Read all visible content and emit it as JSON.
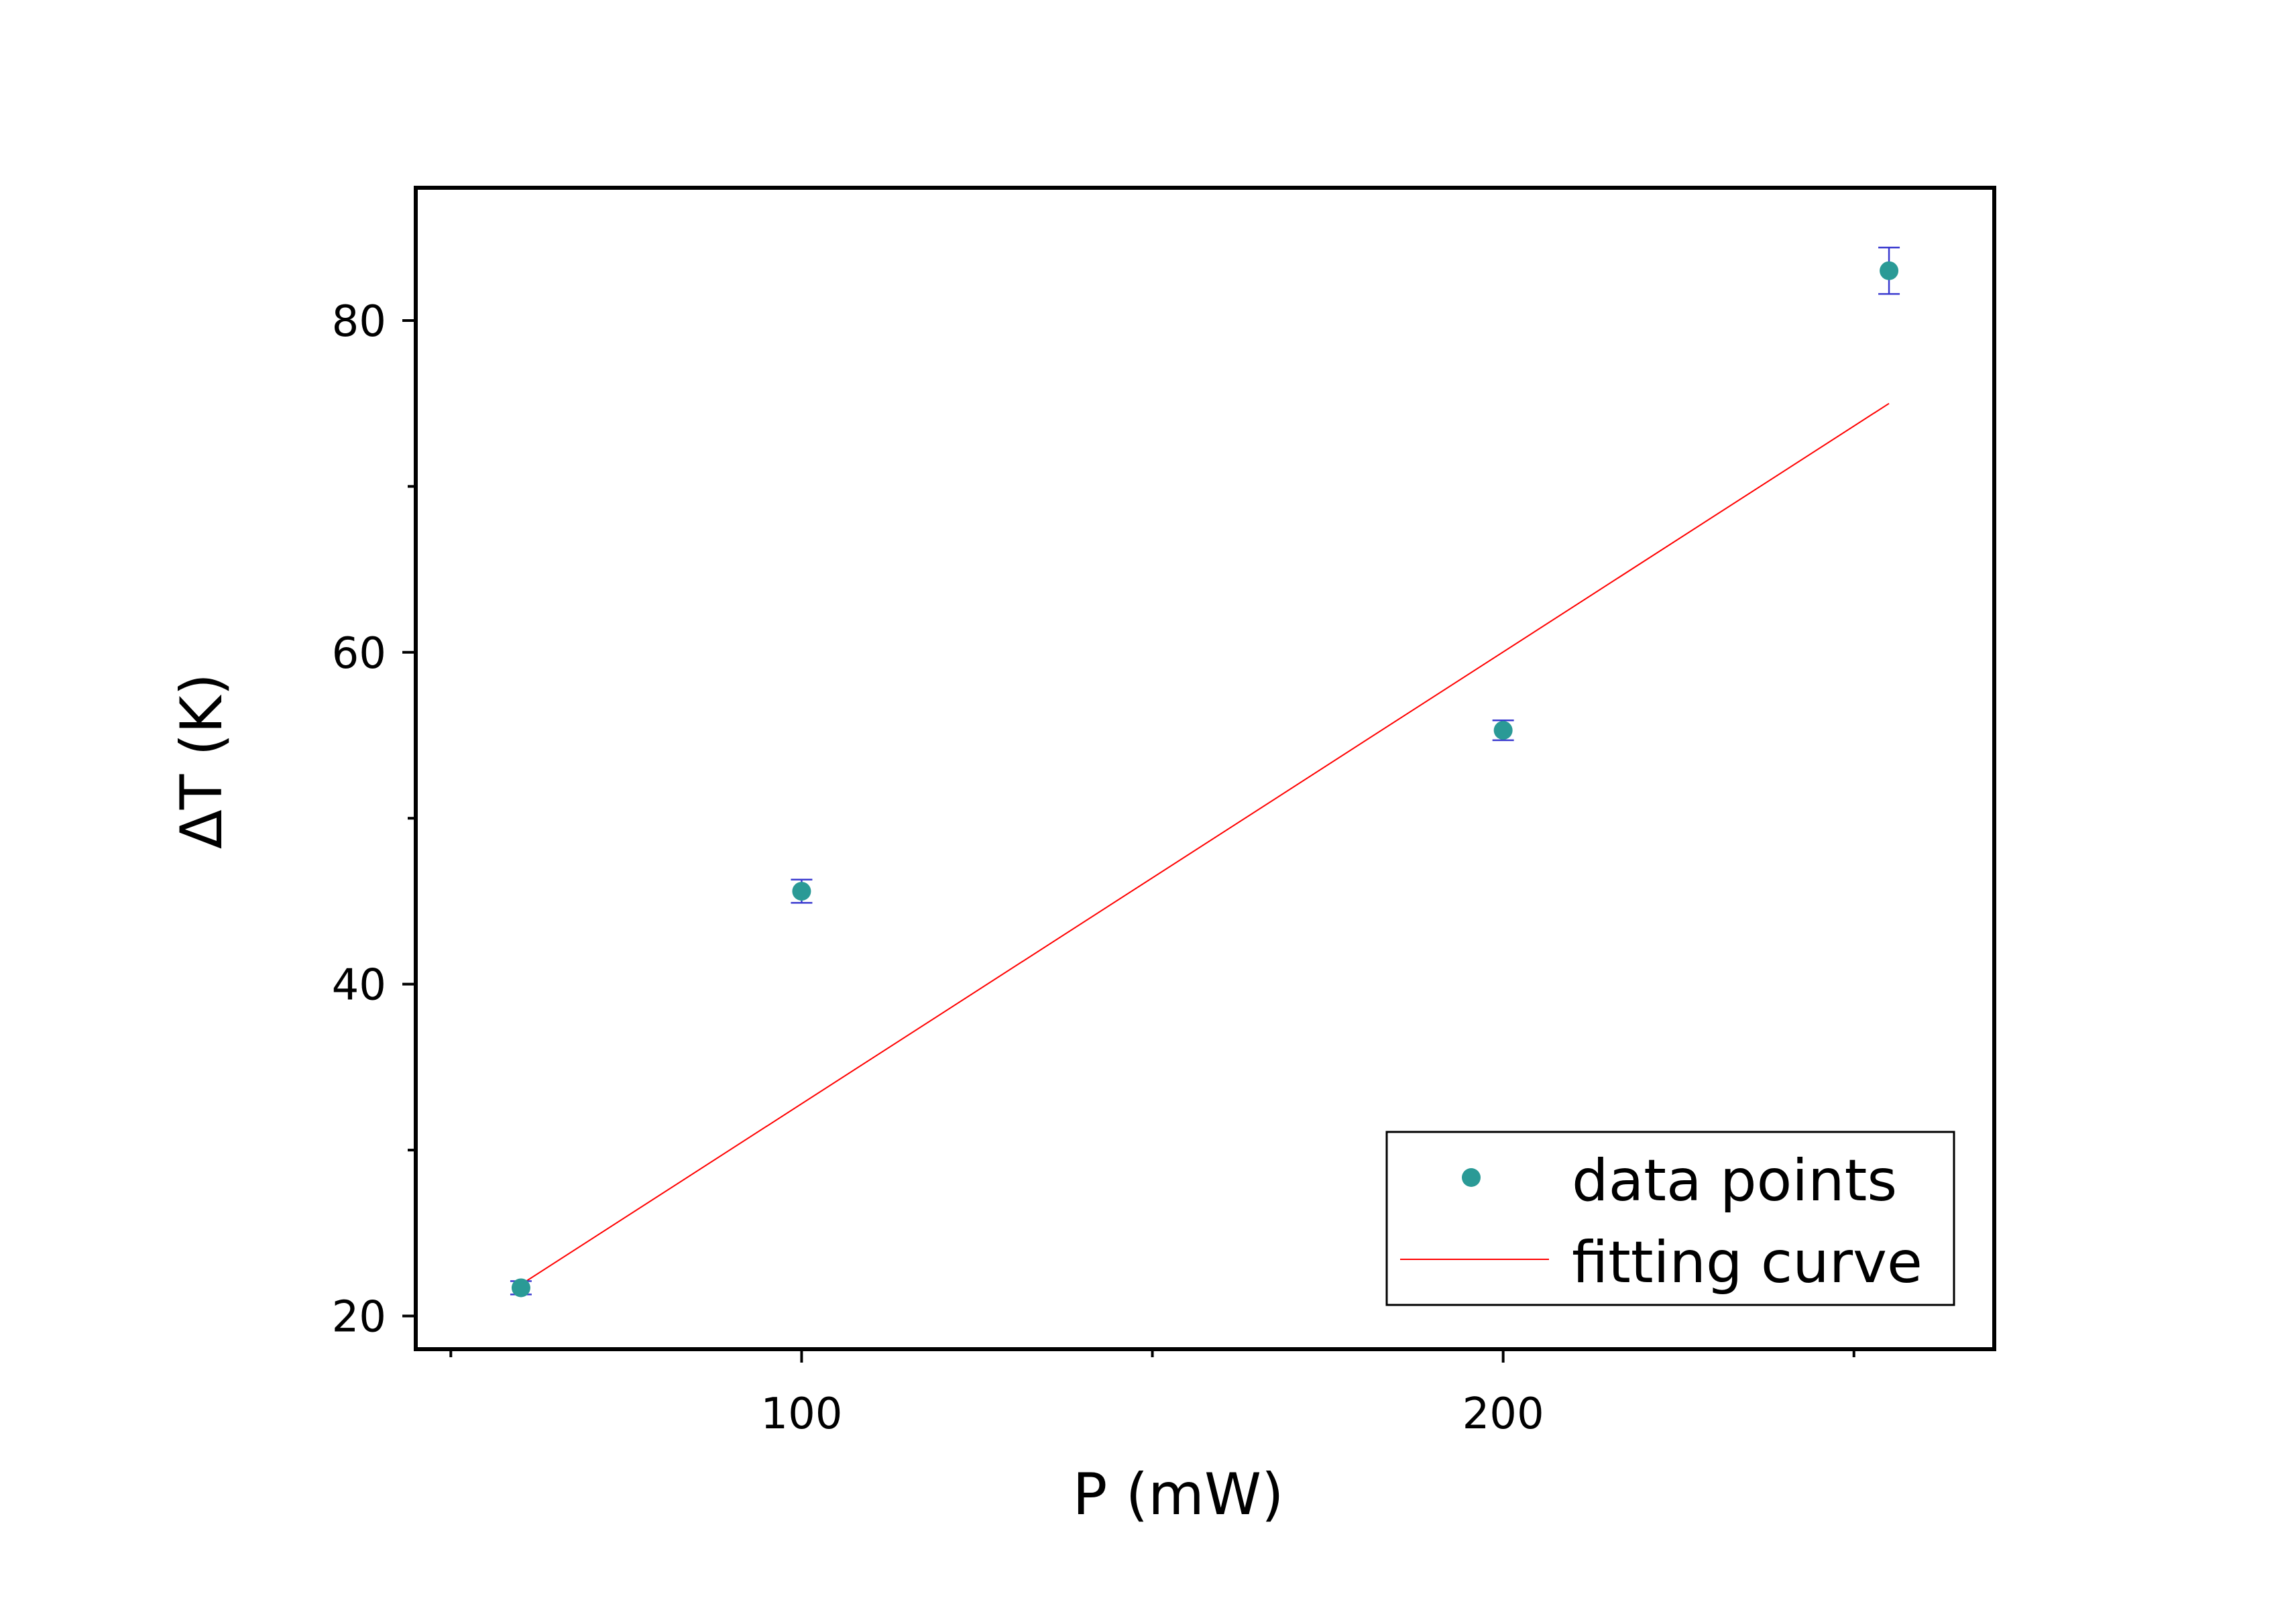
{
  "chart_data": {
    "type": "scatter",
    "xlabel": "P (mW)",
    "ylabel": "ΔT (K)",
    "xlim": [
      45,
      270
    ],
    "ylim": [
      18,
      88
    ],
    "x_ticks": [
      100,
      200
    ],
    "x_minor_ticks": [
      50,
      150,
      250
    ],
    "y_ticks": [
      20,
      40,
      60,
      80
    ],
    "y_minor_ticks": [
      30,
      50,
      70
    ],
    "grid": false,
    "legend_position": "bottom-right",
    "series": [
      {
        "name": "data points",
        "kind": "scatter",
        "color": "#2a9a96",
        "errorbar_color": "#3a3acf",
        "x": [
          60,
          100,
          200,
          255
        ],
        "y": [
          21.7,
          45.6,
          55.3,
          83.0
        ],
        "yerr": [
          0.4,
          0.7,
          0.6,
          1.4
        ]
      },
      {
        "name": "fitting curve",
        "kind": "line",
        "color": "#ff0000",
        "x": [
          60,
          255
        ],
        "y": [
          21.9,
          75.0
        ]
      }
    ]
  }
}
